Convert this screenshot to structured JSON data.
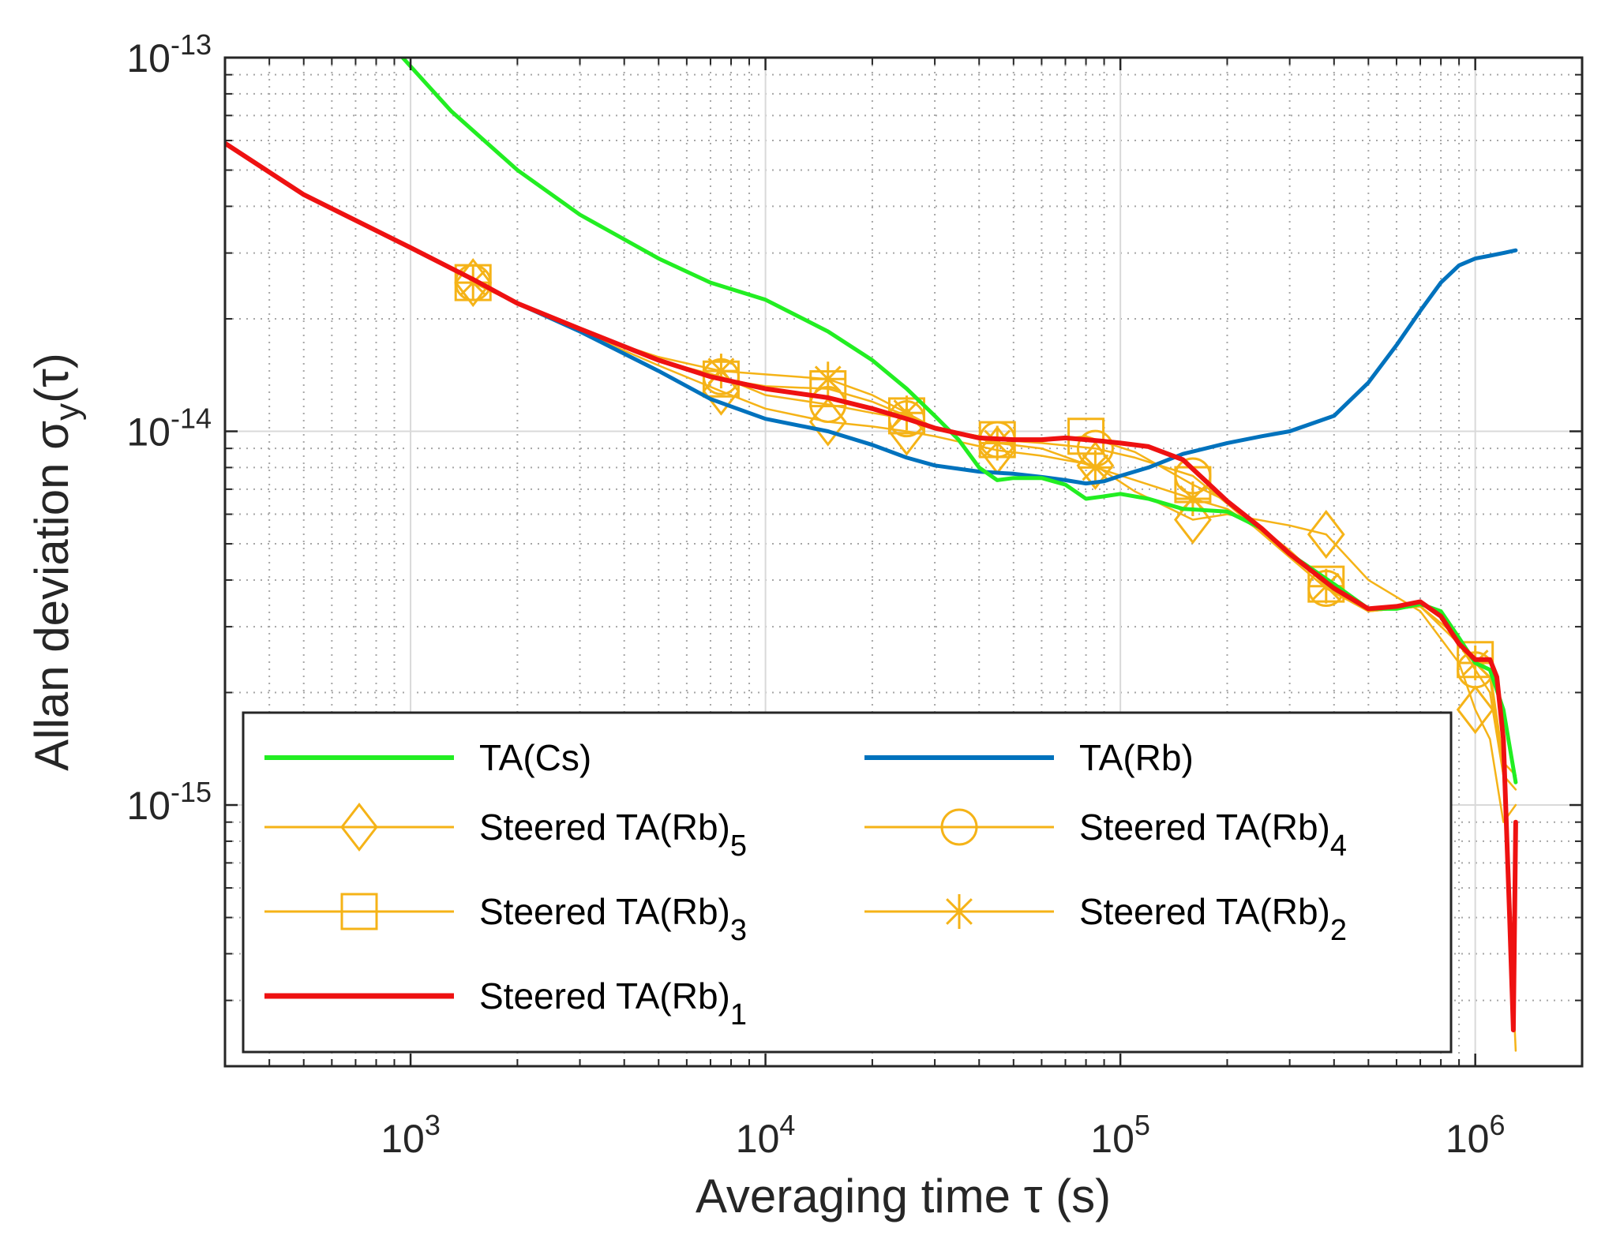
{
  "chart_data": {
    "type": "line",
    "xscale": "log",
    "yscale": "log",
    "xlim": [
      300,
      2000000
    ],
    "ylim": [
      2e-16,
      1e-13
    ],
    "xlabel": "Averaging time τ (s)",
    "ylabel_main": "Allan deviation σ",
    "ylabel_sub": "y",
    "ylabel_tail": "(τ)",
    "grid": true,
    "legend_position": "bottom-left",
    "x_ticks": [
      {
        "value": 1000,
        "base": "10",
        "exp": "3"
      },
      {
        "value": 10000,
        "base": "10",
        "exp": "4"
      },
      {
        "value": 100000,
        "base": "10",
        "exp": "5"
      },
      {
        "value": 1000000,
        "base": "10",
        "exp": "6"
      }
    ],
    "y_ticks": [
      {
        "value": 1e-13,
        "base": "10",
        "exp": "-13"
      },
      {
        "value": 1e-14,
        "base": "10",
        "exp": "-14"
      },
      {
        "value": 1e-15,
        "base": "10",
        "exp": "-15"
      }
    ],
    "series": [
      {
        "id": "ta-cs",
        "name": "TA(Cs)",
        "color": "#22ee22",
        "width": 5,
        "marker": "none",
        "x": [
          950,
          1300,
          2000,
          3000,
          5000,
          7000,
          10000,
          15000,
          20000,
          25000,
          30000,
          35000,
          40000,
          45000,
          50000,
          60000,
          70000,
          80000,
          90000,
          100000,
          120000,
          150000,
          200000,
          250000,
          300000,
          400000,
          500000,
          600000,
          700000,
          800000,
          900000,
          1000000,
          1100000,
          1200000,
          1300000
        ],
        "y": [
          1e-13,
          7.2e-14,
          5e-14,
          3.8e-14,
          2.9e-14,
          2.5e-14,
          2.25e-14,
          1.85e-14,
          1.55e-14,
          1.3e-14,
          1.1e-14,
          9.5e-15,
          8e-15,
          7.4e-15,
          7.5e-15,
          7.5e-15,
          7.2e-15,
          6.6e-15,
          6.7e-15,
          6.8e-15,
          6.6e-15,
          6.2e-15,
          6.1e-15,
          5.5e-15,
          4.7e-15,
          3.9e-15,
          3.35e-15,
          3.35e-15,
          3.45e-15,
          3.3e-15,
          2.8e-15,
          2.4e-15,
          2.3e-15,
          1.8e-15,
          1.15e-15
        ]
      },
      {
        "id": "ta-rb",
        "name": "TA(Rb)",
        "color": "#0072bd",
        "width": 5,
        "marker": "none",
        "x": [
          300,
          500,
          1000,
          1500,
          2000,
          3000,
          5000,
          7000,
          10000,
          15000,
          20000,
          25000,
          30000,
          40000,
          50000,
          60000,
          70000,
          80000,
          90000,
          100000,
          120000,
          150000,
          200000,
          250000,
          300000,
          400000,
          500000,
          600000,
          700000,
          800000,
          900000,
          1000000,
          1100000,
          1200000,
          1300000
        ],
        "y": [
          5.9e-14,
          4.3e-14,
          3.1e-14,
          2.55e-14,
          2.2e-14,
          1.85e-14,
          1.45e-14,
          1.22e-14,
          1.08e-14,
          1e-14,
          9.2e-15,
          8.5e-15,
          8.1e-15,
          7.8e-15,
          7.7e-15,
          7.55e-15,
          7.4e-15,
          7.25e-15,
          7.35e-15,
          7.6e-15,
          8e-15,
          8.7e-15,
          9.3e-15,
          9.7e-15,
          1e-14,
          1.1e-14,
          1.35e-14,
          1.7e-14,
          2.1e-14,
          2.5e-14,
          2.78e-14,
          2.9e-14,
          2.95e-14,
          3e-14,
          3.05e-14
        ]
      },
      {
        "id": "steered-5",
        "name": "Steered TA(Rb)",
        "sub": "5",
        "color": "#f5b317",
        "width": 2.5,
        "marker": "diamond",
        "x": [
          1500,
          2000,
          3000,
          5000,
          7500,
          10000,
          15000,
          20000,
          25000,
          30000,
          45000,
          60000,
          85000,
          110000,
          160000,
          200000,
          300000,
          380000,
          500000,
          700000,
          900000,
          1000000,
          1100000,
          1200000,
          1300000
        ],
        "y": [
          2.5e-14,
          2.2e-14,
          1.85e-14,
          1.5e-14,
          1.28e-14,
          1.15e-14,
          1.06e-14,
          1.03e-14,
          1e-14,
          9.7e-15,
          8.9e-15,
          8.6e-15,
          8.1e-15,
          6.9e-15,
          5.8e-15,
          6e-15,
          5.6e-15,
          5.3e-15,
          4e-15,
          3.3e-15,
          2.4e-15,
          1.8e-15,
          1.5e-15,
          9e-16,
          1e-15
        ],
        "mx": [
          1500,
          7500,
          15000,
          25000,
          45000,
          85000,
          160000,
          380000,
          1000000
        ]
      },
      {
        "id": "steered-4",
        "name": "Steered TA(Rb)",
        "sub": "4",
        "color": "#f5b317",
        "width": 2.5,
        "marker": "circle",
        "x": [
          1500,
          2000,
          3000,
          5000,
          7500,
          10000,
          15000,
          20000,
          25000,
          30000,
          45000,
          60000,
          85000,
          110000,
          160000,
          200000,
          300000,
          380000,
          500000,
          700000,
          900000,
          1000000,
          1100000,
          1200000,
          1300000
        ],
        "y": [
          2.5e-14,
          2.2e-14,
          1.85e-14,
          1.55e-14,
          1.4e-14,
          1.25e-14,
          1.18e-14,
          1.12e-14,
          1.08e-14,
          1.02e-14,
          9.5e-15,
          9.3e-15,
          9e-15,
          8.5e-15,
          7.6e-15,
          6.4e-15,
          4.6e-15,
          3.8e-15,
          3.3e-15,
          3.4e-15,
          2.7e-15,
          2.3e-15,
          2e-15,
          1.2e-15,
          1.1e-15
        ],
        "mx": [
          1500,
          7500,
          15000,
          25000,
          45000,
          85000,
          160000,
          380000,
          1000000
        ]
      },
      {
        "id": "steered-3",
        "name": "Steered TA(Rb)",
        "sub": "3",
        "color": "#f5b317",
        "width": 2.5,
        "marker": "square",
        "x": [
          1500,
          2000,
          3000,
          5000,
          7500,
          10000,
          15000,
          20000,
          25000,
          30000,
          45000,
          60000,
          80000,
          110000,
          160000,
          200000,
          300000,
          380000,
          500000,
          700000,
          900000,
          1000000,
          1100000,
          1200000,
          1300000
        ],
        "y": [
          2.5e-14,
          2.2e-14,
          1.85e-14,
          1.55e-14,
          1.38e-14,
          1.32e-14,
          1.3e-14,
          1.2e-14,
          1.1e-14,
          1.02e-14,
          9.5e-15,
          9.4e-15,
          9.7e-15,
          8.8e-15,
          7.2e-15,
          6.5e-15,
          4.8e-15,
          3.9e-15,
          3.3e-15,
          3.4e-15,
          2.8e-15,
          2.45e-15,
          2.3e-15,
          1.3e-15,
          1.2e-15
        ],
        "mx": [
          1500,
          7500,
          15000,
          25000,
          45000,
          80000,
          160000,
          380000,
          1000000
        ]
      },
      {
        "id": "steered-2",
        "name": "Steered TA(Rb)",
        "sub": "2",
        "color": "#f5b317",
        "width": 2.5,
        "marker": "asterisk",
        "x": [
          1500,
          2000,
          3000,
          5000,
          7500,
          10000,
          15000,
          20000,
          25000,
          30000,
          45000,
          60000,
          85000,
          110000,
          160000,
          200000,
          300000,
          380000,
          500000,
          700000,
          900000,
          1000000,
          1100000,
          1200000,
          1300000
        ],
        "y": [
          2.5e-14,
          2.2e-14,
          1.85e-14,
          1.58e-14,
          1.45e-14,
          1.42e-14,
          1.38e-14,
          1.25e-14,
          1.12e-14,
          1.02e-14,
          9.3e-15,
          9e-15,
          8e-15,
          7.4e-15,
          6.6e-15,
          6.2e-15,
          4.8e-15,
          3.85e-15,
          3.3e-15,
          3.4e-15,
          2.8e-15,
          2.4e-15,
          2.2e-15,
          1.2e-15,
          2.2e-16
        ],
        "mx": [
          1500,
          7500,
          15000,
          25000,
          45000,
          85000,
          160000,
          380000,
          1000000
        ]
      },
      {
        "id": "steered-1",
        "name": "Steered TA(Rb)",
        "sub": "1",
        "color": "#ee1111",
        "width": 6,
        "marker": "none",
        "x": [
          300,
          500,
          1000,
          1500,
          2000,
          3000,
          5000,
          7000,
          10000,
          15000,
          20000,
          25000,
          30000,
          40000,
          50000,
          60000,
          70000,
          80000,
          90000,
          100000,
          120000,
          150000,
          200000,
          250000,
          300000,
          400000,
          500000,
          600000,
          700000,
          800000,
          900000,
          1000000,
          1100000,
          1150000,
          1200000,
          1250000,
          1280000,
          1300000
        ],
        "y": [
          5.9e-14,
          4.3e-14,
          3.1e-14,
          2.55e-14,
          2.2e-14,
          1.88e-14,
          1.55e-14,
          1.4e-14,
          1.3e-14,
          1.23e-14,
          1.15e-14,
          1.08e-14,
          1.02e-14,
          9.6e-15,
          9.5e-15,
          9.5e-15,
          9.6e-15,
          9.5e-15,
          9.4e-15,
          9.3e-15,
          9.1e-15,
          8.4e-15,
          6.5e-15,
          5.5e-15,
          4.7e-15,
          3.8e-15,
          3.35e-15,
          3.4e-15,
          3.5e-15,
          3.2e-15,
          2.7e-15,
          2.45e-15,
          2.45e-15,
          2.2e-15,
          1.5e-15,
          5e-16,
          2.5e-16,
          9e-16
        ]
      }
    ],
    "legend": [
      {
        "label": "TA(Cs)",
        "sub": ""
      },
      {
        "label": "TA(Rb)",
        "sub": ""
      },
      {
        "label": "Steered TA(Rb)",
        "sub": "5"
      },
      {
        "label": "Steered TA(Rb)",
        "sub": "4"
      },
      {
        "label": "Steered TA(Rb)",
        "sub": "3"
      },
      {
        "label": "Steered TA(Rb)",
        "sub": "2"
      },
      {
        "label": "Steered TA(Rb)",
        "sub": "1"
      }
    ]
  }
}
